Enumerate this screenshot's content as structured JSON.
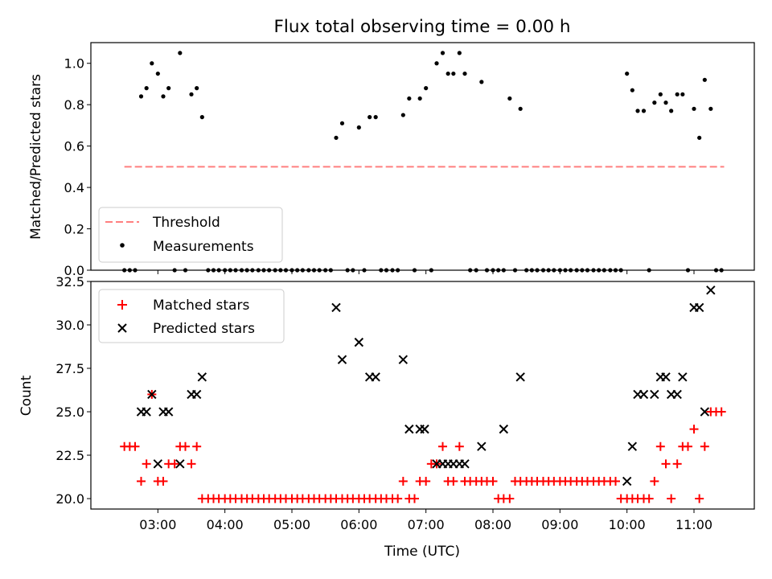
{
  "figure": {
    "title": "Flux total observing time = 0.00 h"
  },
  "chart_data": [
    {
      "type": "scatter",
      "panel": "top",
      "ylabel": "Matched/Predicted stars",
      "xlim": [
        2.0,
        11.9
      ],
      "ylim": [
        0.0,
        1.1
      ],
      "yticks": [
        0.0,
        0.2,
        0.4,
        0.6,
        0.8,
        1.0
      ],
      "ytick_labels": [
        "0.0",
        "0.2",
        "0.4",
        "0.6",
        "0.8",
        "1.0"
      ],
      "legend_position": "lower-left",
      "legend": [
        "Threshold",
        "Measurements"
      ],
      "threshold": {
        "name": "Threshold",
        "y": 0.5,
        "x_start": 2.5,
        "x_end": 11.45,
        "color": "#ff7f7f"
      },
      "measurements": {
        "name": "Measurements",
        "color": "#000000",
        "x": [
          2.5,
          2.58,
          2.66,
          2.75,
          2.83,
          2.91,
          3.0,
          3.08,
          3.16,
          3.25,
          3.33,
          3.41,
          3.5,
          3.58,
          3.66,
          3.75,
          3.83,
          3.91,
          4.0,
          4.08,
          4.16,
          4.25,
          4.33,
          4.41,
          4.5,
          4.58,
          4.66,
          4.75,
          4.83,
          4.91,
          5.0,
          5.08,
          5.16,
          5.25,
          5.33,
          5.41,
          5.5,
          5.58,
          5.66,
          5.75,
          5.83,
          5.91,
          6.0,
          6.08,
          6.16,
          6.25,
          6.33,
          6.41,
          6.5,
          6.58,
          6.66,
          6.75,
          6.83,
          6.91,
          7.0,
          7.08,
          7.16,
          7.25,
          7.33,
          7.41,
          7.5,
          7.58,
          7.66,
          7.75,
          7.83,
          7.91,
          8.0,
          8.08,
          8.16,
          8.25,
          8.33,
          8.41,
          8.5,
          8.58,
          8.66,
          8.75,
          8.83,
          8.91,
          9.0,
          9.08,
          9.16,
          9.25,
          9.33,
          9.41,
          9.5,
          9.58,
          9.66,
          9.75,
          9.83,
          9.91,
          10.0,
          10.08,
          10.16,
          10.25,
          10.33,
          10.41,
          10.5,
          10.58,
          10.66,
          10.75,
          10.83,
          10.91,
          11.0,
          11.08,
          11.16,
          11.25,
          11.33,
          11.41
        ],
        "y": [
          0.0,
          0.0,
          0.0,
          0.84,
          0.88,
          1.0,
          0.95,
          0.84,
          0.88,
          0.0,
          1.05,
          0.0,
          0.85,
          0.88,
          0.74,
          0.0,
          0.0,
          0.0,
          0.0,
          0.0,
          0.0,
          0.0,
          0.0,
          0.0,
          0.0,
          0.0,
          0.0,
          0.0,
          0.0,
          0.0,
          0.0,
          0.0,
          0.0,
          0.0,
          0.0,
          0.0,
          0.0,
          0.0,
          0.64,
          0.71,
          0.0,
          0.0,
          0.69,
          0.0,
          0.74,
          0.74,
          0.0,
          0.0,
          0.0,
          0.0,
          0.75,
          0.83,
          0.0,
          0.83,
          0.88,
          0.0,
          1.0,
          1.05,
          0.95,
          0.95,
          1.05,
          0.95,
          0.0,
          0.0,
          0.91,
          0.0,
          0.0,
          0.0,
          0.0,
          0.83,
          0.0,
          0.78,
          0.0,
          0.0,
          0.0,
          0.0,
          0.0,
          0.0,
          0.0,
          0.0,
          0.0,
          0.0,
          0.0,
          0.0,
          0.0,
          0.0,
          0.0,
          0.0,
          0.0,
          0.0,
          0.95,
          0.87,
          0.77,
          0.77,
          0.0,
          0.81,
          0.85,
          0.81,
          0.77,
          0.85,
          0.85,
          0.0,
          0.78,
          0.64,
          0.92,
          0.78,
          0.0,
          0.0
        ]
      }
    },
    {
      "type": "scatter",
      "panel": "bottom",
      "xlabel": "Time (UTC)",
      "ylabel": "Count",
      "xlim": [
        2.0,
        11.9
      ],
      "ylim": [
        19.4,
        32.5
      ],
      "xticks": [
        3,
        4,
        5,
        6,
        7,
        8,
        9,
        10,
        11
      ],
      "xtick_labels": [
        "03:00",
        "04:00",
        "05:00",
        "06:00",
        "07:00",
        "08:00",
        "09:00",
        "10:00",
        "11:00"
      ],
      "yticks": [
        20.0,
        22.5,
        25.0,
        27.5,
        30.0,
        32.5
      ],
      "ytick_labels": [
        "20.0",
        "22.5",
        "25.0",
        "27.5",
        "30.0",
        "32.5"
      ],
      "legend_position": "upper-left",
      "legend": [
        "Matched stars",
        "Predicted stars"
      ],
      "matched": {
        "name": "Matched stars",
        "color": "#ff0000",
        "marker": "+",
        "x": [
          2.5,
          2.58,
          2.66,
          2.75,
          2.83,
          2.91,
          3.0,
          3.08,
          3.16,
          3.25,
          3.33,
          3.41,
          3.5,
          3.58,
          3.66,
          3.75,
          3.83,
          3.91,
          4.0,
          4.08,
          4.16,
          4.25,
          4.33,
          4.41,
          4.5,
          4.58,
          4.66,
          4.75,
          4.83,
          4.91,
          5.0,
          5.08,
          5.16,
          5.25,
          5.33,
          5.41,
          5.5,
          5.58,
          5.66,
          5.75,
          5.83,
          5.91,
          6.0,
          6.08,
          6.16,
          6.25,
          6.33,
          6.41,
          6.5,
          6.58,
          6.66,
          6.75,
          6.83,
          6.91,
          7.0,
          7.08,
          7.16,
          7.25,
          7.33,
          7.41,
          7.5,
          7.58,
          7.66,
          7.75,
          7.83,
          7.91,
          8.0,
          8.08,
          8.16,
          8.25,
          8.33,
          8.41,
          8.5,
          8.58,
          8.66,
          8.75,
          8.83,
          8.91,
          9.0,
          9.08,
          9.16,
          9.25,
          9.33,
          9.41,
          9.5,
          9.58,
          9.66,
          9.75,
          9.83,
          9.91,
          10.0,
          10.08,
          10.16,
          10.25,
          10.33,
          10.41,
          10.5,
          10.58,
          10.66,
          10.75,
          10.83,
          10.91,
          11.0,
          11.08,
          11.16,
          11.25,
          11.33,
          11.41
        ],
        "y": [
          23,
          23,
          23,
          21,
          22,
          26,
          21,
          21,
          22,
          22,
          23,
          23,
          22,
          23,
          20,
          20,
          20,
          20,
          20,
          20,
          20,
          20,
          20,
          20,
          20,
          20,
          20,
          20,
          20,
          20,
          20,
          20,
          20,
          20,
          20,
          20,
          20,
          20,
          20,
          20,
          20,
          20,
          20,
          20,
          20,
          20,
          20,
          20,
          20,
          20,
          21,
          20,
          20,
          21,
          21,
          22,
          22,
          23,
          21,
          21,
          23,
          21,
          21,
          21,
          21,
          21,
          21,
          20,
          20,
          20,
          21,
          21,
          21,
          21,
          21,
          21,
          21,
          21,
          21,
          21,
          21,
          21,
          21,
          21,
          21,
          21,
          21,
          21,
          21,
          20,
          20,
          20,
          20,
          20,
          20,
          21,
          23,
          22,
          20,
          22,
          23,
          23,
          24,
          20,
          23,
          25,
          25,
          25
        ]
      },
      "predicted": {
        "name": "Predicted stars",
        "color": "#000000",
        "marker": "x",
        "x": [
          2.75,
          2.83,
          2.91,
          3.0,
          3.08,
          3.16,
          3.33,
          3.5,
          3.58,
          3.66,
          5.66,
          5.75,
          6.0,
          6.16,
          6.25,
          6.66,
          6.75,
          6.91,
          6.98,
          7.16,
          7.25,
          7.33,
          7.41,
          7.5,
          7.58,
          7.83,
          8.16,
          8.41,
          10.0,
          10.08,
          10.16,
          10.25,
          10.41,
          10.5,
          10.58,
          10.66,
          10.75,
          10.83,
          11.0,
          11.08,
          11.16,
          11.25
        ],
        "y": [
          25,
          25,
          26,
          22,
          25,
          25,
          22,
          26,
          26,
          27,
          31,
          28,
          29,
          27,
          27,
          28,
          24,
          24,
          24,
          22,
          22,
          22,
          22,
          22,
          22,
          23,
          24,
          27,
          21,
          23,
          26,
          26,
          26,
          27,
          27,
          26,
          26,
          27,
          31,
          31,
          25,
          32
        ]
      }
    }
  ]
}
